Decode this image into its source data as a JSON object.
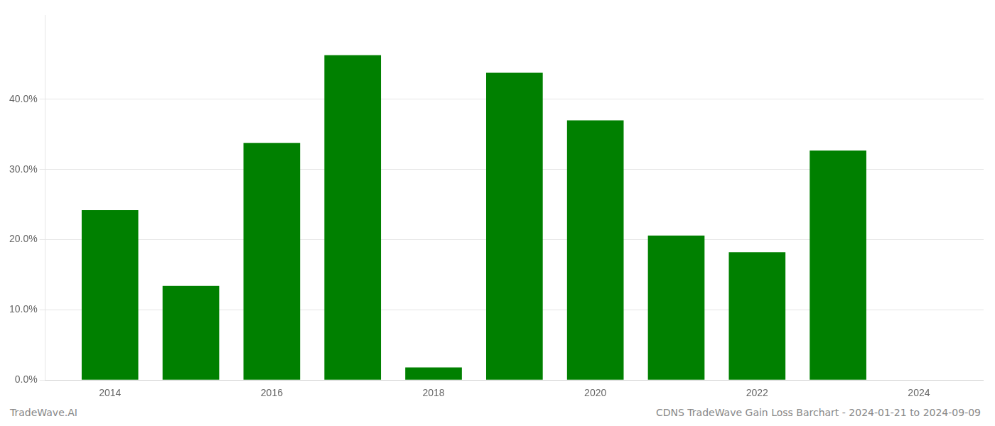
{
  "chart_data": {
    "type": "bar",
    "x": [
      2014,
      2015,
      2016,
      2017,
      2018,
      2019,
      2020,
      2021,
      2022,
      2023
    ],
    "values": [
      0.242,
      0.134,
      0.338,
      0.463,
      0.018,
      0.438,
      0.37,
      0.206,
      0.182,
      0.327
    ],
    "color": "#008000",
    "xlim": [
      2013.2,
      2024.8
    ],
    "xticks": [
      2014,
      2016,
      2018,
      2020,
      2022,
      2024
    ],
    "ylim": [
      0.0,
      0.52
    ],
    "yticks": [
      {
        "value": 0.0,
        "label": "0.0%"
      },
      {
        "value": 0.1,
        "label": "10.0%"
      },
      {
        "value": 0.2,
        "label": "20.0%"
      },
      {
        "value": 0.3,
        "label": "30.0%"
      },
      {
        "value": 0.4,
        "label": "40.0%"
      }
    ],
    "grid": true,
    "annotations": [
      "TradeWave.AI",
      "CDNS TradeWave Gain Loss Barchart - 2024-01-21 to 2024-09-09"
    ]
  }
}
